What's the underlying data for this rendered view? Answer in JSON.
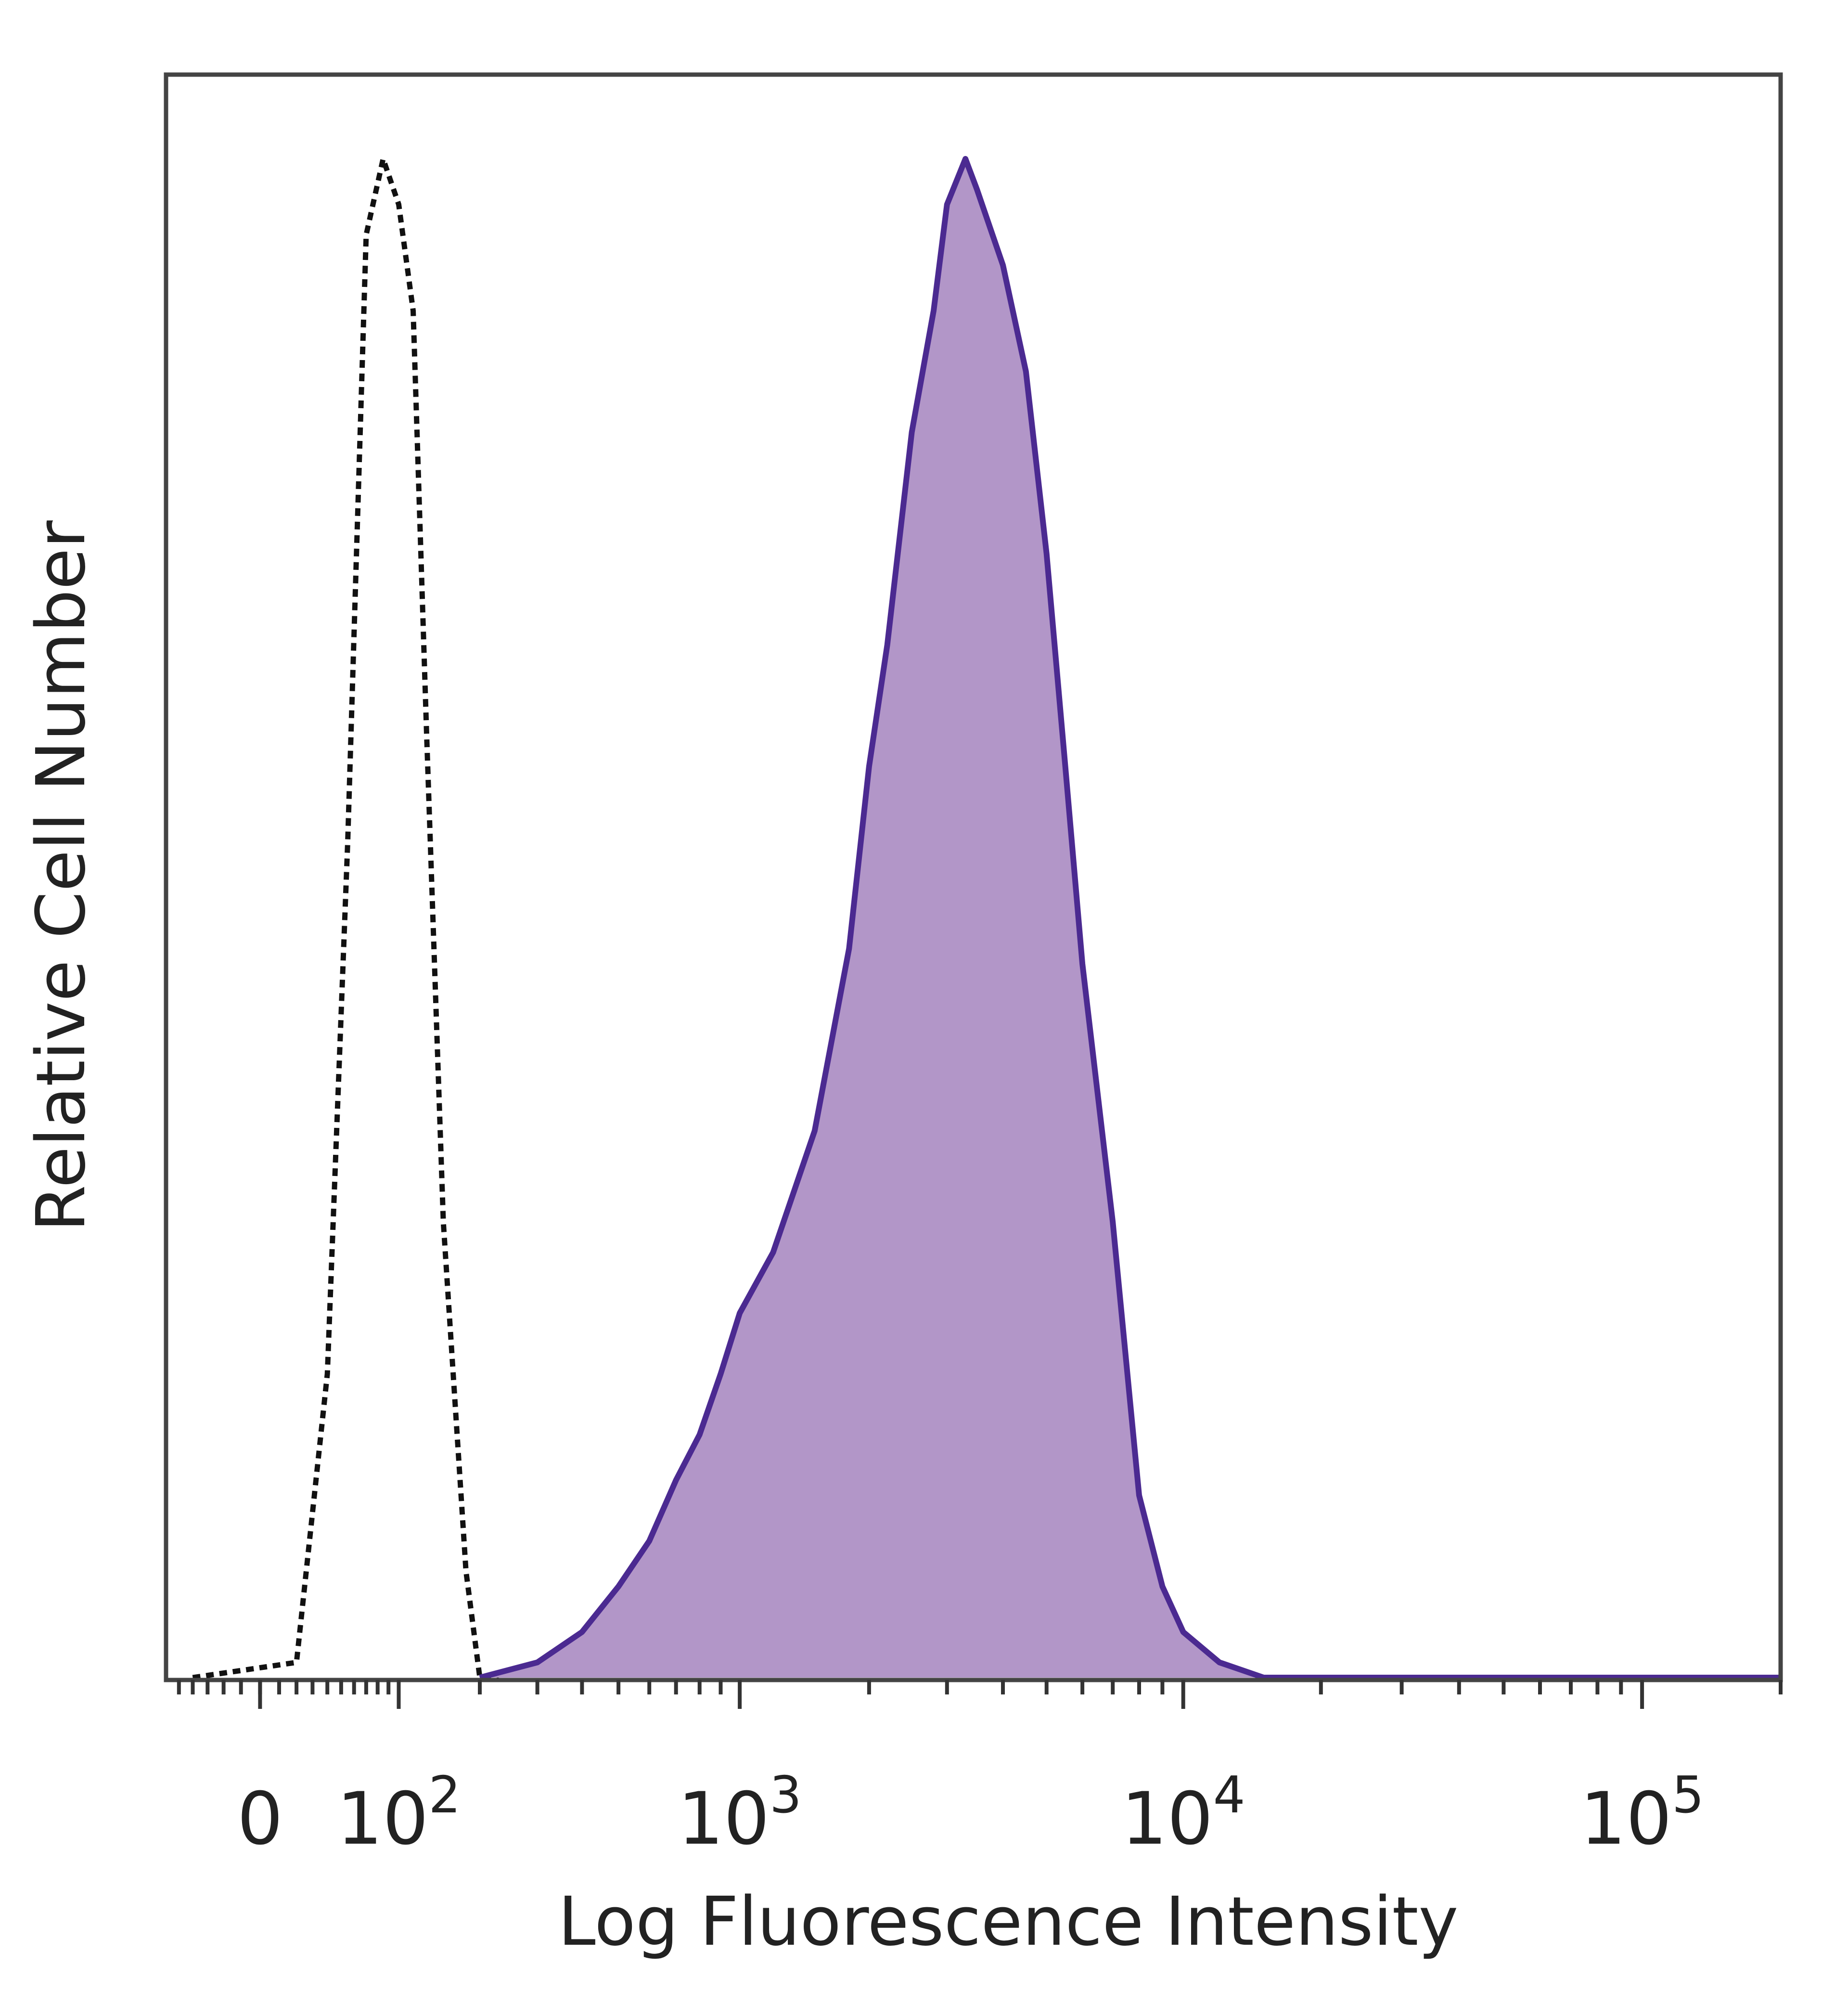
{
  "chart_data": {
    "type": "area",
    "title": "",
    "xlabel": "Log Fluorescence Intensity",
    "ylabel": "Relative Cell Number",
    "x_scale": "biexponential",
    "xlim": [
      -60,
      200000
    ],
    "ylim": [
      0,
      1.05
    ],
    "x_tick_labels": [
      {
        "value": 0,
        "base": "0",
        "exp": ""
      },
      {
        "value": 100,
        "base": "10",
        "exp": "2"
      },
      {
        "value": 1000,
        "base": "10",
        "exp": "3"
      },
      {
        "value": 10000,
        "base": "10",
        "exp": "4"
      },
      {
        "value": 100000,
        "base": "10",
        "exp": "5"
      }
    ],
    "grid": false,
    "legend": "none",
    "series": [
      {
        "style": "dotted-outline",
        "color": "#111111",
        "x": [
          -40,
          20,
          40,
          55,
          70,
          85,
          100,
          115,
          130,
          150,
          180,
          200,
          230
        ],
        "y": [
          0,
          0.01,
          0.2,
          0.55,
          0.95,
          1.0,
          0.97,
          0.9,
          0.62,
          0.3,
          0.07,
          0.0,
          0.0
        ]
      },
      {
        "style": "filled",
        "color": "#4b2a91",
        "fill": "#b296c8",
        "x": [
          200,
          300,
          400,
          500,
          600,
          700,
          800,
          900,
          1000,
          1200,
          1500,
          1800,
          2000,
          2200,
          2500,
          2800,
          3000,
          3300,
          3500,
          4000,
          4500,
          5000,
          5500,
          6000,
          7000,
          8000,
          9000,
          10000,
          12000,
          15000,
          20000,
          50000,
          200000
        ],
        "y": [
          0.0,
          0.01,
          0.03,
          0.06,
          0.09,
          0.13,
          0.16,
          0.2,
          0.24,
          0.28,
          0.36,
          0.48,
          0.6,
          0.68,
          0.82,
          0.9,
          0.97,
          1.0,
          0.98,
          0.93,
          0.86,
          0.74,
          0.6,
          0.47,
          0.3,
          0.12,
          0.06,
          0.03,
          0.01,
          0.0,
          0.0,
          0.0,
          0.0
        ]
      }
    ]
  }
}
